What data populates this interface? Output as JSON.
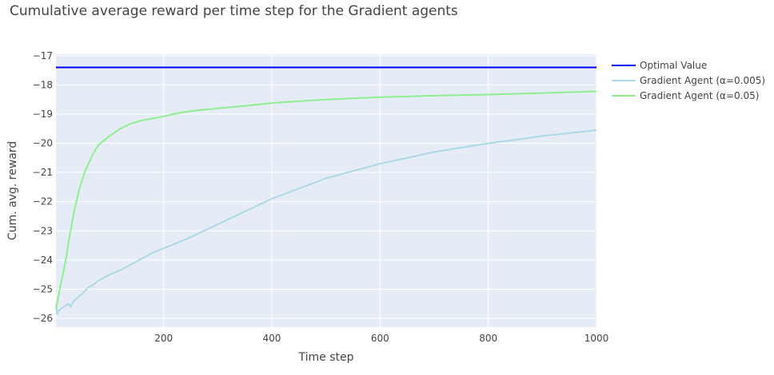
{
  "chart_data": {
    "type": "line",
    "title": "Cumulative average reward per time step for the Gradient agents",
    "xlabel": "Time step",
    "ylabel": "Cum. avg. reward",
    "xlim": [
      1,
      1000
    ],
    "ylim": [
      -26.3,
      -16.95
    ],
    "x_ticks": [
      200,
      400,
      600,
      800,
      1000
    ],
    "y_ticks": [
      -26,
      -25,
      -24,
      -23,
      -22,
      -21,
      -20,
      -19,
      -18,
      -17
    ],
    "x_tick_labels": [
      "200",
      "400",
      "600",
      "800",
      "1000"
    ],
    "y_tick_labels": [
      "−26",
      "−25",
      "−24",
      "−23",
      "−22",
      "−21",
      "−20",
      "−19",
      "−18",
      "−17"
    ],
    "grid": true,
    "legend_position": "right",
    "series": [
      {
        "name": "Optimal Value",
        "color": "#0000ff",
        "x": [
          1,
          1000
        ],
        "y": [
          -17.4,
          -17.4
        ]
      },
      {
        "name": "Gradient Agent (α=0.005)",
        "color": "#add8e6",
        "x": [
          1,
          3,
          5,
          8,
          12,
          16,
          20,
          24,
          28,
          32,
          40,
          50,
          60,
          70,
          80,
          90,
          100,
          120,
          140,
          160,
          180,
          200,
          240,
          280,
          320,
          360,
          400,
          450,
          500,
          550,
          600,
          650,
          700,
          750,
          800,
          850,
          900,
          950,
          1000
        ],
        "y": [
          -25.5,
          -25.85,
          -25.75,
          -25.7,
          -25.65,
          -25.6,
          -25.55,
          -25.5,
          -25.6,
          -25.45,
          -25.3,
          -25.15,
          -24.95,
          -24.85,
          -24.7,
          -24.6,
          -24.5,
          -24.35,
          -24.15,
          -23.95,
          -23.75,
          -23.6,
          -23.3,
          -22.95,
          -22.6,
          -22.25,
          -21.9,
          -21.55,
          -21.2,
          -20.95,
          -20.7,
          -20.5,
          -20.3,
          -20.15,
          -20.0,
          -19.88,
          -19.75,
          -19.65,
          -19.55
        ]
      },
      {
        "name": "Gradient Agent (α=0.05)",
        "color": "#90ee90",
        "x": [
          1,
          5,
          10,
          15,
          20,
          25,
          30,
          35,
          40,
          45,
          50,
          55,
          60,
          70,
          80,
          90,
          100,
          120,
          140,
          160,
          180,
          200,
          225,
          250,
          300,
          350,
          400,
          500,
          600,
          700,
          800,
          900,
          1000
        ],
        "y": [
          -25.7,
          -25.3,
          -24.8,
          -24.4,
          -23.9,
          -23.3,
          -22.8,
          -22.3,
          -21.9,
          -21.5,
          -21.25,
          -20.95,
          -20.75,
          -20.35,
          -20.05,
          -19.9,
          -19.75,
          -19.5,
          -19.32,
          -19.22,
          -19.15,
          -19.08,
          -18.97,
          -18.9,
          -18.8,
          -18.72,
          -18.62,
          -18.5,
          -18.42,
          -18.37,
          -18.33,
          -18.28,
          -18.22
        ]
      }
    ]
  }
}
